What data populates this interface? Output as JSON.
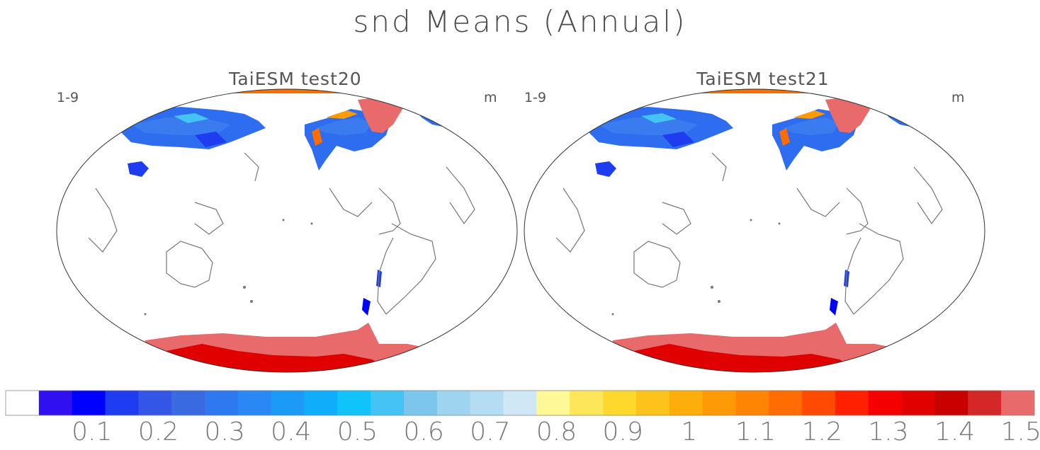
{
  "title": "snd Means (Annual)",
  "panels": [
    {
      "title": "TaiESM test20",
      "period": "1-9",
      "unit": "m"
    },
    {
      "title": "TaiESM test21",
      "period": "1-9",
      "unit": "m"
    }
  ],
  "chart_data": {
    "type": "heatmap",
    "title": "snd Means (Annual)",
    "variable": "snd",
    "units": "m",
    "projection": "elliptical global map, Pacific-centered",
    "maps": [
      {
        "name": "TaiESM test20",
        "period": "1-9",
        "units": "m"
      },
      {
        "name": "TaiESM test21",
        "period": "1-9",
        "units": "m"
      }
    ],
    "colorbar": {
      "tick_labels": [
        "0.1",
        "0.2",
        "0.3",
        "0.4",
        "0.5",
        "0.6",
        "0.7",
        "0.8",
        "0.9",
        "1",
        "1.1",
        "1.2",
        "1.3",
        "1.4",
        "1.5"
      ],
      "colors": [
        "#ffffff",
        "#3010f0",
        "#0000ff",
        "#1e3cf0",
        "#3456e6",
        "#3a6ae0",
        "#2e78f0",
        "#2a88f4",
        "#1c9af8",
        "#10aefa",
        "#10c4fa",
        "#44c4f4",
        "#7cc6ec",
        "#9ed4ef",
        "#b4dcf2",
        "#d0e8f6",
        "#fef896",
        "#fee65a",
        "#fed82c",
        "#fec21c",
        "#feae0a",
        "#fe9a06",
        "#fe8404",
        "#fe6c02",
        "#fe4a02",
        "#fe2000",
        "#f40000",
        "#e00000",
        "#c80000",
        "#d42828",
        "#e86a6a"
      ]
    }
  }
}
